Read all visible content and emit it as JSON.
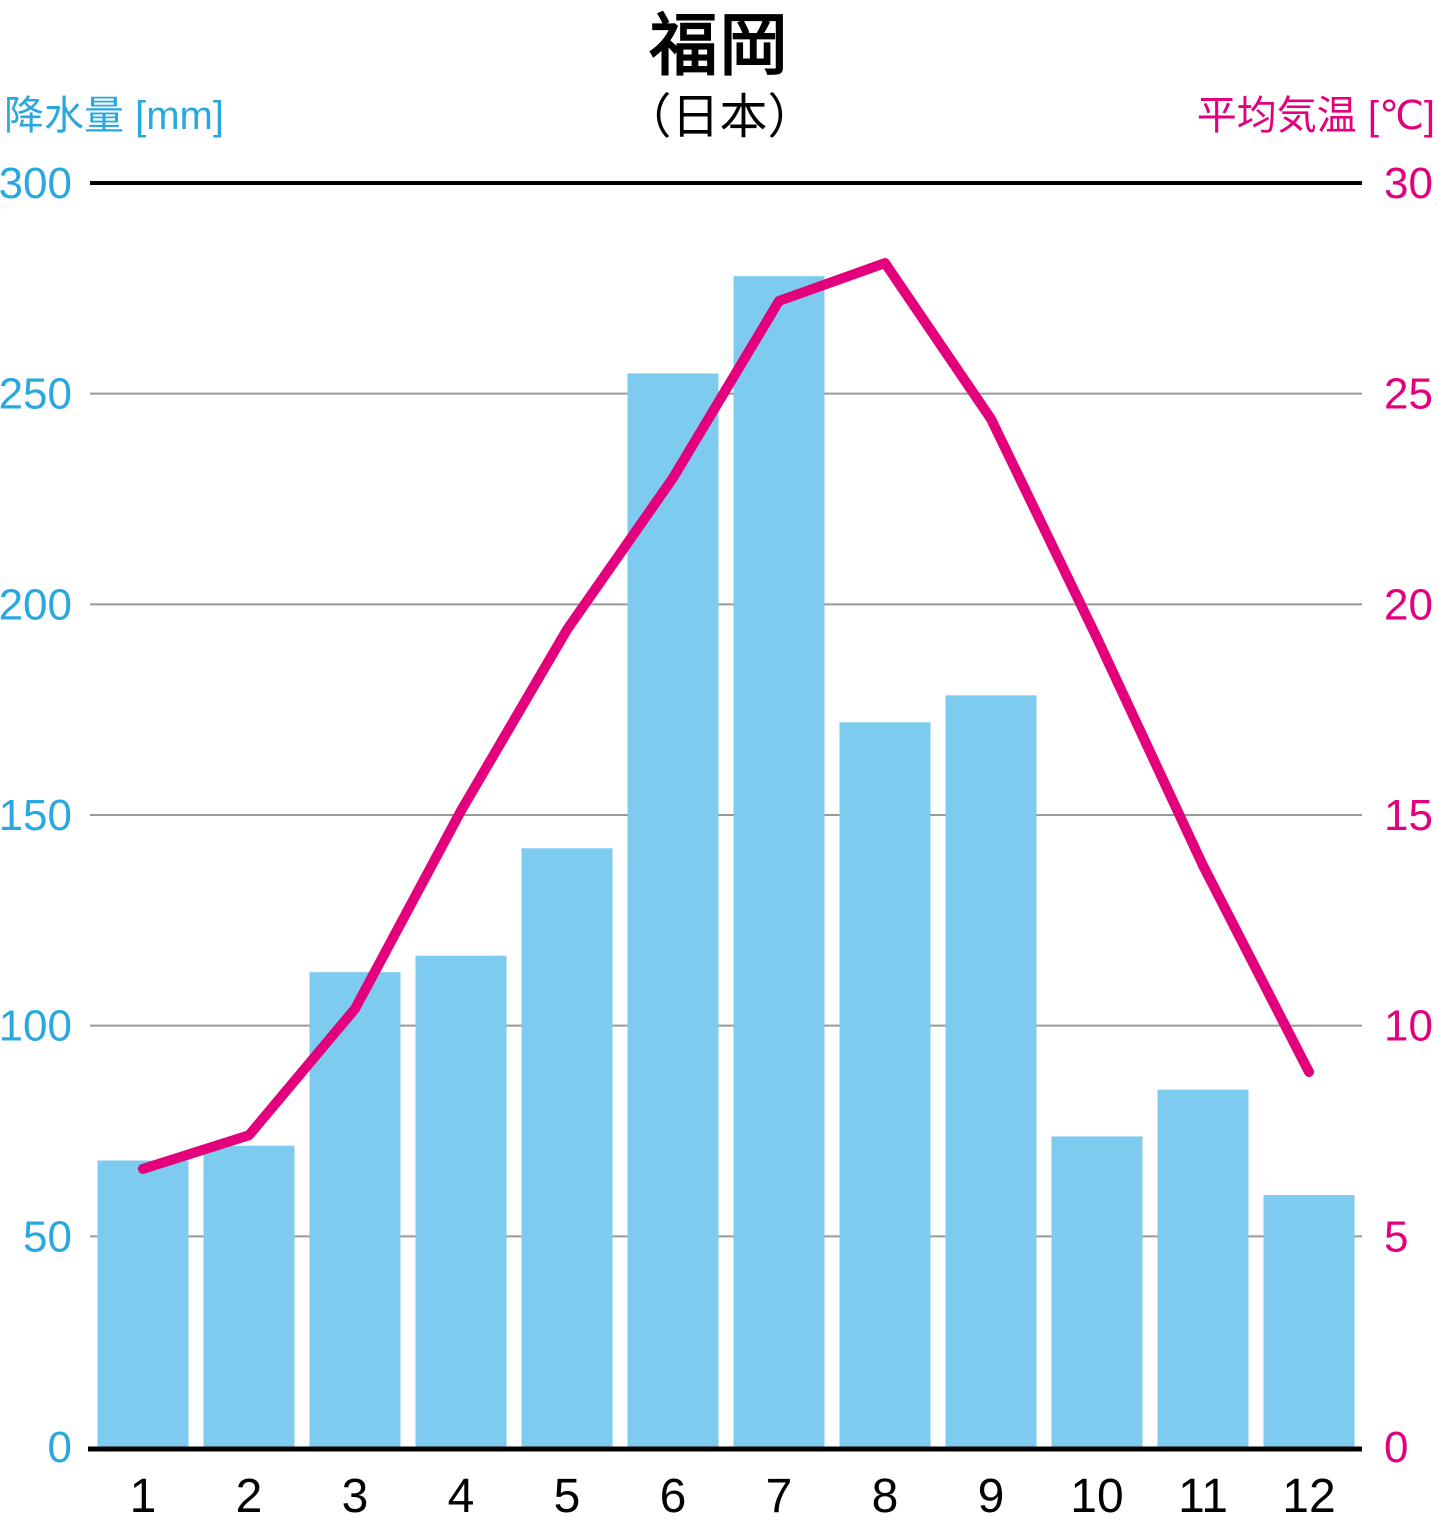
{
  "title": "福岡",
  "subtitle": "（日本）",
  "axes": {
    "left": {
      "label": "降水量 [mm]",
      "color": "#29A8E0",
      "ticks": [
        0,
        50,
        100,
        150,
        200,
        250,
        300
      ],
      "range": [
        0,
        300
      ]
    },
    "right": {
      "label": "平均気温 [℃]",
      "color": "#E4007C",
      "ticks": [
        0,
        5,
        10,
        15,
        20,
        25,
        30
      ],
      "range": [
        0,
        30
      ]
    },
    "x": {
      "ticks": [
        "1",
        "2",
        "3",
        "4",
        "5",
        "6",
        "7",
        "8",
        "9",
        "10",
        "11",
        "12"
      ]
    }
  },
  "chart_data": {
    "type": "bar+line",
    "title": "福岡（日本）",
    "categories": [
      1,
      2,
      3,
      4,
      5,
      6,
      7,
      8,
      9,
      10,
      11,
      12
    ],
    "series": [
      {
        "name": "降水量",
        "type": "bar",
        "axis": "left",
        "unit": "mm",
        "color": "#7DCBEF",
        "values": [
          68.0,
          71.5,
          112.7,
          116.6,
          142.1,
          254.8,
          277.9,
          172.0,
          178.4,
          73.7,
          84.8,
          59.8
        ]
      },
      {
        "name": "平均気温",
        "type": "line",
        "axis": "right",
        "unit": "℃",
        "color": "#E4007C",
        "values": [
          6.6,
          7.4,
          10.4,
          15.1,
          19.4,
          23.0,
          27.2,
          28.1,
          24.4,
          19.2,
          13.8,
          8.9
        ]
      }
    ],
    "ylim_left": [
      0,
      300
    ],
    "ylim_right": [
      0,
      30
    ],
    "grid": true,
    "legend": "none"
  },
  "colors": {
    "background": "#FFFFFF",
    "bar": "#7DCBEF",
    "temp_line": "#E4007C",
    "precip_text": "#29A8E0",
    "temp_text": "#E4007C",
    "grid": "#999999",
    "axis": "#000000",
    "x_label_text": "#000000"
  }
}
